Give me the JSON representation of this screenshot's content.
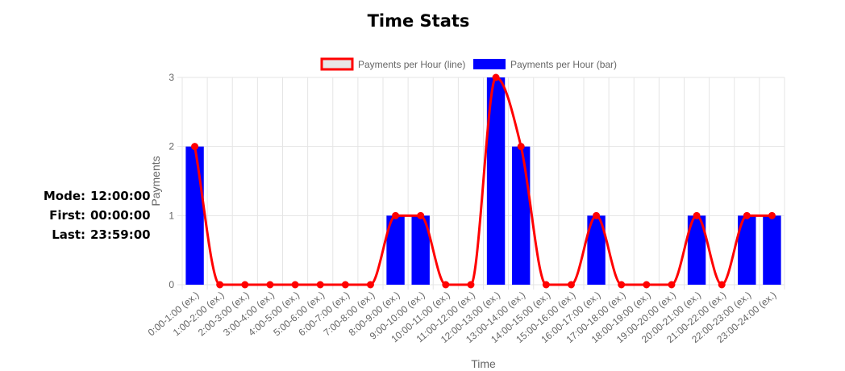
{
  "page": {
    "title": "Time Stats"
  },
  "stats": {
    "mode_label": "Mode:",
    "mode_value": "12:00:00",
    "first_label": "First:",
    "first_value": "00:00:00",
    "last_label": "Last:",
    "last_value": "23:59:00"
  },
  "colors": {
    "bar": "#0000ff",
    "line": "#ff0000",
    "line_legend_fill": "#e8e8e8",
    "grid": "#e5e5e5",
    "text": "#666666"
  },
  "chart_data": {
    "type": "bar",
    "title": "",
    "xlabel": "Time",
    "ylabel": "Payments",
    "ylim": [
      0,
      3
    ],
    "yticks": [
      0,
      1,
      2,
      3
    ],
    "grid": true,
    "legend_position": "top",
    "categories": [
      "0:00-1:00 (ex.)",
      "1:00-2:00 (ex.)",
      "2:00-3:00 (ex.)",
      "3:00-4:00 (ex.)",
      "4:00-5:00 (ex.)",
      "5:00-6:00 (ex.)",
      "6:00-7:00 (ex.)",
      "7:00-8:00 (ex.)",
      "8:00-9:00 (ex.)",
      "9:00-10:00 (ex.)",
      "10:00-11:00 (ex.)",
      "11:00-12:00 (ex.)",
      "12:00-13:00 (ex.)",
      "13:00-14:00 (ex.)",
      "14:00-15:00 (ex.)",
      "15:00-16:00 (ex.)",
      "16:00-17:00 (ex.)",
      "17:00-18:00 (ex.)",
      "18:00-19:00 (ex.)",
      "19:00-20:00 (ex.)",
      "20:00-21:00 (ex.)",
      "21:00-22:00 (ex.)",
      "22:00-23:00 (ex.)",
      "23:00-24:00 (ex.)"
    ],
    "series": [
      {
        "name": "Payments per Hour (line)",
        "type": "line",
        "values": [
          2,
          0,
          0,
          0,
          0,
          0,
          0,
          0,
          1,
          1,
          0,
          0,
          3,
          2,
          0,
          0,
          1,
          0,
          0,
          0,
          1,
          0,
          1,
          1
        ]
      },
      {
        "name": "Payments per Hour (bar)",
        "type": "bar",
        "values": [
          2,
          0,
          0,
          0,
          0,
          0,
          0,
          0,
          1,
          1,
          0,
          0,
          3,
          2,
          0,
          0,
          1,
          0,
          0,
          0,
          1,
          0,
          1,
          1
        ]
      }
    ]
  }
}
